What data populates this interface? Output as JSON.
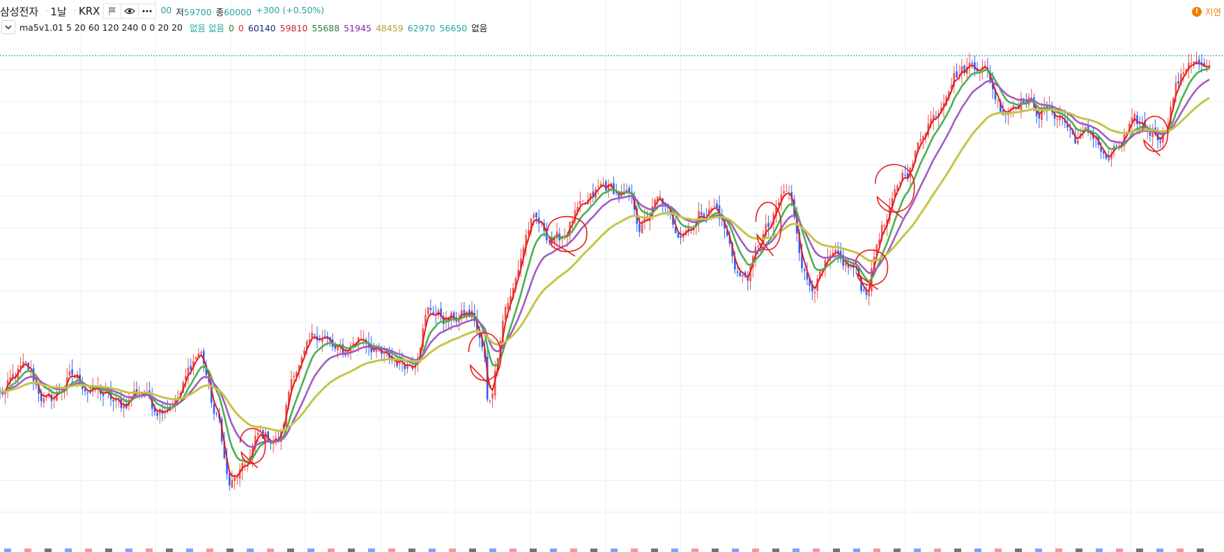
{
  "header": {
    "symbol": "삼성전자",
    "interval": "1날",
    "exchange": "KRX",
    "ohlc_partial": "00",
    "low_label": "저",
    "low_value": "59700",
    "close_label": "종",
    "close_value": "60000",
    "change": "+300 (+0.50%)",
    "delay_label": "지연",
    "delay_icon": "!"
  },
  "indicator": {
    "name": "ma5v1.01 5 20 60 120 240 0 0 20 20",
    "values": [
      {
        "text": "없음 없음",
        "color": "#26a69a"
      },
      {
        "text": "0",
        "color": "#2e7d32"
      },
      {
        "text": "0",
        "color": "#d32f2f"
      },
      {
        "text": "60140",
        "color": "#1a237e"
      },
      {
        "text": "59810",
        "color": "#c62828"
      },
      {
        "text": "55688",
        "color": "#2e7d32"
      },
      {
        "text": "51945",
        "color": "#8e24aa"
      },
      {
        "text": "48459",
        "color": "#b5a62a"
      },
      {
        "text": "62970",
        "color": "#26a69a"
      },
      {
        "text": "56650",
        "color": "#26a69a"
      },
      {
        "text": "없음",
        "color": "#131722"
      }
    ]
  },
  "colors": {
    "up": "#ef5350",
    "down": "#2962ff",
    "grid": "#e6f1f3",
    "price_line": "#0b8f8f",
    "ma_red": "#e31b1b",
    "ma_green": "#4caf50",
    "ma_purple": "#a25cc2",
    "ma_olive": "#c6c447",
    "annotation": "#e81c1c"
  },
  "icons": [
    "flag-icon",
    "eye-icon",
    "more-icon",
    "chevron-down-icon",
    "alert-icon"
  ],
  "chart_data": {
    "type": "candlestick",
    "title": "삼성전자",
    "xlabel": "",
    "ylabel": "",
    "grid": true,
    "annotation_circles": 7,
    "series": [
      {
        "name": "MA 5",
        "color": "#e31b1b"
      },
      {
        "name": "MA 20",
        "color": "#4caf50"
      },
      {
        "name": "MA 60",
        "color": "#a25cc2"
      },
      {
        "name": "MA 120",
        "color": "#c6c447"
      }
    ],
    "waypoints": [
      [
        0,
        49500
      ],
      [
        0.02,
        51000
      ],
      [
        0.04,
        49000
      ],
      [
        0.06,
        50500
      ],
      [
        0.08,
        49600
      ],
      [
        0.1,
        48700
      ],
      [
        0.115,
        49800
      ],
      [
        0.13,
        48700
      ],
      [
        0.145,
        49200
      ],
      [
        0.165,
        52100
      ],
      [
        0.18,
        47800
      ],
      [
        0.19,
        43700
      ],
      [
        0.2,
        44500
      ],
      [
        0.215,
        46800
      ],
      [
        0.23,
        46600
      ],
      [
        0.245,
        51300
      ],
      [
        0.265,
        53300
      ],
      [
        0.28,
        52000
      ],
      [
        0.3,
        53100
      ],
      [
        0.32,
        51600
      ],
      [
        0.34,
        51500
      ],
      [
        0.355,
        54800
      ],
      [
        0.37,
        54200
      ],
      [
        0.39,
        54500
      ],
      [
        0.4,
        52200
      ],
      [
        0.403,
        48800
      ],
      [
        0.42,
        55500
      ],
      [
        0.44,
        60300
      ],
      [
        0.46,
        59200
      ],
      [
        0.48,
        61000
      ],
      [
        0.5,
        62600
      ],
      [
        0.52,
        61800
      ],
      [
        0.53,
        60100
      ],
      [
        0.545,
        61600
      ],
      [
        0.56,
        59900
      ],
      [
        0.59,
        61300
      ],
      [
        0.615,
        56800
      ],
      [
        0.635,
        59900
      ],
      [
        0.65,
        62200
      ],
      [
        0.67,
        56500
      ],
      [
        0.69,
        57800
      ],
      [
        0.705,
        57400
      ],
      [
        0.715,
        56000
      ],
      [
        0.73,
        60100
      ],
      [
        0.75,
        63700
      ],
      [
        0.77,
        67000
      ],
      [
        0.79,
        69900
      ],
      [
        0.81,
        70500
      ],
      [
        0.83,
        67600
      ],
      [
        0.845,
        68300
      ],
      [
        0.86,
        67400
      ],
      [
        0.875,
        67200
      ],
      [
        0.89,
        65700
      ],
      [
        0.905,
        65900
      ],
      [
        0.915,
        64300
      ],
      [
        0.94,
        66400
      ],
      [
        0.96,
        66000
      ],
      [
        0.975,
        69300
      ],
      [
        0.985,
        70800
      ],
      [
        1.0,
        69700
      ]
    ],
    "candle_count": 470,
    "ylim": [
      40000,
      72000
    ],
    "current_price_line": 70900,
    "x_tick_count": 15
  }
}
